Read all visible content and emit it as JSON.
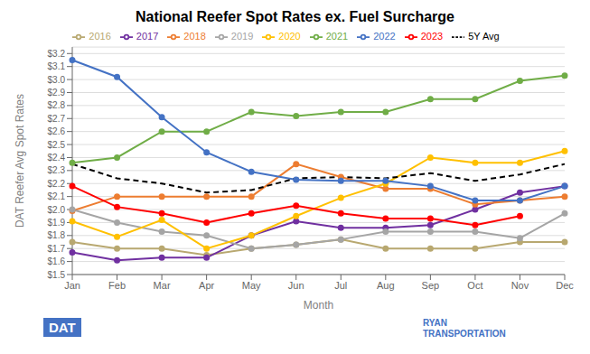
{
  "chart_data": {
    "type": "line",
    "title": "National Reefer Spot Rates ex. Fuel Surcharge",
    "x_label": "Month",
    "y_label": "DAT Reefer Avg Spot Rates",
    "categories": [
      "Jan",
      "Feb",
      "Mar",
      "Apr",
      "May",
      "Jun",
      "Jul",
      "Aug",
      "Sep",
      "Oct",
      "Nov",
      "Dec"
    ],
    "series": [
      {
        "name": "2016",
        "color": "#b8a870",
        "marker": "circle",
        "line_style": "solid",
        "values": [
          1.75,
          1.7,
          1.7,
          1.65,
          1.7,
          1.73,
          1.77,
          1.7,
          1.7,
          1.7,
          1.75,
          1.75
        ]
      },
      {
        "name": "2017",
        "color": "#7030a0",
        "marker": "circle",
        "line_style": "solid",
        "values": [
          1.67,
          1.61,
          1.63,
          1.63,
          1.8,
          1.91,
          1.86,
          1.86,
          1.88,
          2.0,
          2.13,
          2.18
        ]
      },
      {
        "name": "2018",
        "color": "#ed7d31",
        "marker": "circle",
        "line_style": "solid",
        "values": [
          1.99,
          2.1,
          2.1,
          2.1,
          2.1,
          2.35,
          2.25,
          2.16,
          2.16,
          2.04,
          2.07,
          2.1
        ]
      },
      {
        "name": "2019",
        "color": "#a5a5a5",
        "marker": "circle",
        "line_style": "solid",
        "values": [
          2.0,
          1.9,
          1.83,
          1.8,
          1.7,
          1.73,
          1.77,
          1.83,
          1.83,
          1.83,
          1.78,
          1.97
        ]
      },
      {
        "name": "2020",
        "color": "#ffc000",
        "marker": "circle",
        "line_style": "solid",
        "values": [
          1.91,
          1.79,
          1.92,
          1.7,
          1.8,
          1.95,
          2.09,
          2.2,
          2.4,
          2.36,
          2.36,
          2.45
        ]
      },
      {
        "name": "2021",
        "color": "#70ad47",
        "marker": "circle",
        "line_style": "solid",
        "values": [
          2.36,
          2.4,
          2.6,
          2.6,
          2.75,
          2.72,
          2.75,
          2.75,
          2.85,
          2.85,
          2.99,
          3.03
        ]
      },
      {
        "name": "2022",
        "color": "#4472c4",
        "marker": "circle",
        "line_style": "solid",
        "values": [
          3.15,
          3.02,
          2.71,
          2.44,
          2.29,
          2.23,
          2.22,
          2.22,
          2.18,
          2.07,
          2.07,
          2.18
        ]
      },
      {
        "name": "2023",
        "color": "#ff0000",
        "marker": "circle",
        "line_style": "solid",
        "values": [
          2.18,
          2.02,
          1.97,
          1.9,
          1.97,
          2.03,
          1.97,
          1.93,
          1.93,
          1.88,
          1.95,
          null
        ]
      },
      {
        "name": "5Y Avg",
        "color": "#000000",
        "marker": "none",
        "line_style": "dashed",
        "values": [
          2.35,
          2.24,
          2.2,
          2.13,
          2.15,
          2.24,
          2.25,
          2.24,
          2.28,
          2.22,
          2.27,
          2.35
        ]
      }
    ],
    "ylim": [
      1.5,
      3.25
    ],
    "yticks": [
      {
        "value": 1.5,
        "label": "$1.5"
      },
      {
        "value": 1.6,
        "label": "$1.6"
      },
      {
        "value": 1.7,
        "label": "$1.7"
      },
      {
        "value": 1.8,
        "label": "$1.8"
      },
      {
        "value": 1.9,
        "label": "$1.9"
      },
      {
        "value": 2.0,
        "label": "$2.0"
      },
      {
        "value": 2.1,
        "label": "$2.1"
      },
      {
        "value": 2.2,
        "label": "$2.2"
      },
      {
        "value": 2.3,
        "label": "$2.3"
      },
      {
        "value": 2.4,
        "label": "$2.4"
      },
      {
        "value": 2.5,
        "label": "$2.5"
      },
      {
        "value": 2.6,
        "label": "$2.6"
      },
      {
        "value": 2.7,
        "label": "$2.7"
      },
      {
        "value": 2.8,
        "label": "$2.8"
      },
      {
        "value": 2.9,
        "label": "$2.9"
      },
      {
        "value": 3.0,
        "label": "$3.0"
      },
      {
        "value": 3.1,
        "label": "$3.1"
      },
      {
        "value": 3.2,
        "label": "$3.2"
      }
    ],
    "grid": true,
    "legend": "top",
    "annotations": [
      "DAT",
      "RYAN\nTRANSPORTATION"
    ]
  }
}
